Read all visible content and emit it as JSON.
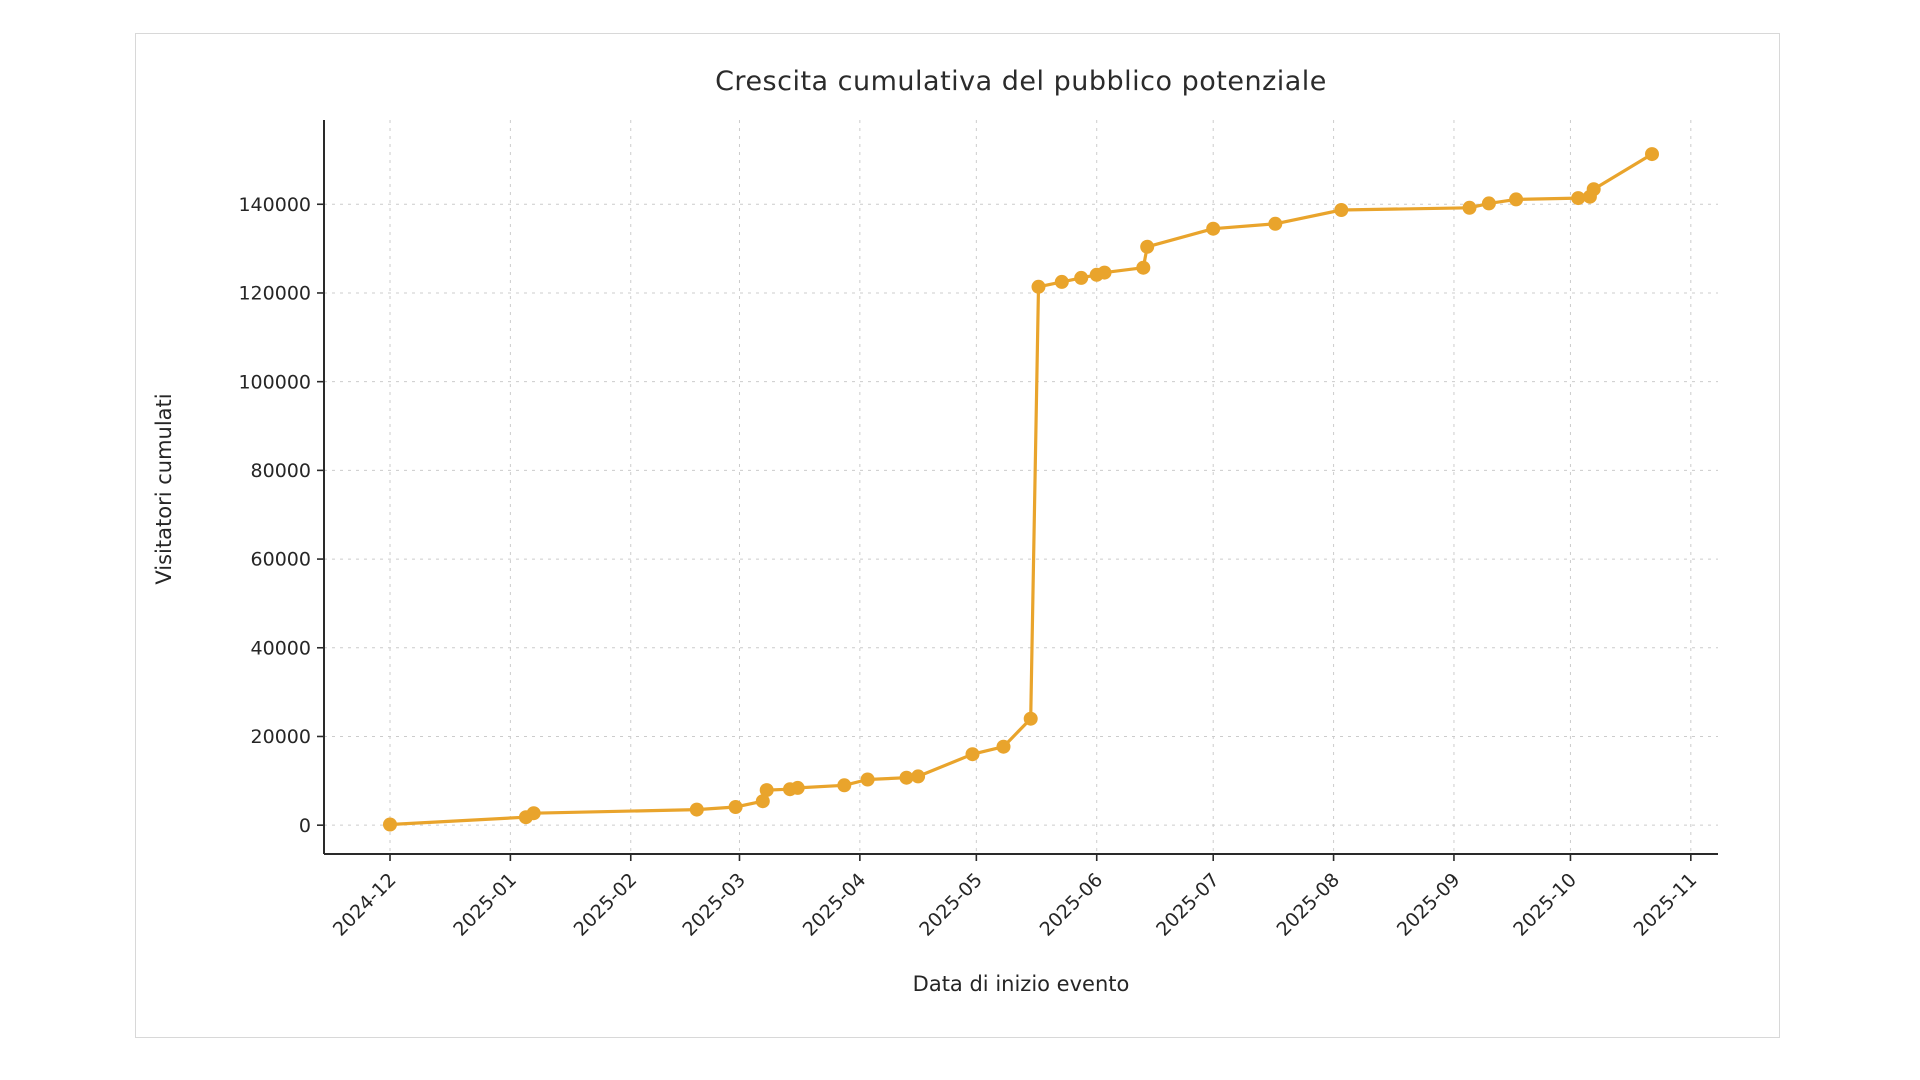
{
  "page": {
    "background": "#ffffff"
  },
  "figure": {
    "background": "#ffffff",
    "border_color": "#d8d8d8"
  },
  "chart_data": {
    "type": "line",
    "title": "Crescita cumulativa del pubblico potenziale",
    "xlabel": "Data di inizio evento",
    "ylabel": "Visitatori cumulati",
    "legend": "none",
    "grid": true,
    "xlim": [
      "2024-11-14",
      "2025-11-08"
    ],
    "ylim": [
      -6500,
      159000
    ],
    "yticks": [
      0,
      20000,
      40000,
      60000,
      80000,
      100000,
      120000,
      140000
    ],
    "xticks": [
      {
        "date": "2024-12-01",
        "label": "2024-12"
      },
      {
        "date": "2025-01-01",
        "label": "2025-01"
      },
      {
        "date": "2025-02-01",
        "label": "2025-02"
      },
      {
        "date": "2025-03-01",
        "label": "2025-03"
      },
      {
        "date": "2025-04-01",
        "label": "2025-04"
      },
      {
        "date": "2025-05-01",
        "label": "2025-05"
      },
      {
        "date": "2025-06-01",
        "label": "2025-06"
      },
      {
        "date": "2025-07-01",
        "label": "2025-07"
      },
      {
        "date": "2025-08-01",
        "label": "2025-08"
      },
      {
        "date": "2025-09-01",
        "label": "2025-09"
      },
      {
        "date": "2025-10-01",
        "label": "2025-10"
      },
      {
        "date": "2025-11-01",
        "label": "2025-11"
      }
    ],
    "series": [
      {
        "name": "Visitatori cumulati",
        "color": "#E9A42C",
        "marker": "circle",
        "points": [
          [
            "2024-12-01",
            150
          ],
          [
            "2025-01-05",
            1800
          ],
          [
            "2025-01-07",
            2700
          ],
          [
            "2025-02-18",
            3500
          ],
          [
            "2025-02-28",
            4100
          ],
          [
            "2025-03-07",
            5400
          ],
          [
            "2025-03-08",
            7900
          ],
          [
            "2025-03-14",
            8100
          ],
          [
            "2025-03-16",
            8400
          ],
          [
            "2025-03-28",
            9000
          ],
          [
            "2025-04-03",
            10300
          ],
          [
            "2025-04-13",
            10700
          ],
          [
            "2025-04-16",
            11000
          ],
          [
            "2025-04-30",
            16000
          ],
          [
            "2025-05-08",
            17700
          ],
          [
            "2025-05-15",
            24000
          ],
          [
            "2025-05-17",
            121400
          ],
          [
            "2025-05-23",
            122500
          ],
          [
            "2025-05-28",
            123400
          ],
          [
            "2025-06-01",
            124100
          ],
          [
            "2025-06-03",
            124600
          ],
          [
            "2025-06-13",
            125700
          ],
          [
            "2025-06-14",
            130400
          ],
          [
            "2025-07-01",
            134500
          ],
          [
            "2025-07-17",
            135600
          ],
          [
            "2025-08-03",
            138700
          ],
          [
            "2025-09-05",
            139200
          ],
          [
            "2025-09-10",
            140200
          ],
          [
            "2025-09-17",
            141100
          ],
          [
            "2025-10-03",
            141400
          ],
          [
            "2025-10-06",
            141700
          ],
          [
            "2025-10-07",
            143400
          ],
          [
            "2025-10-22",
            151300
          ]
        ]
      }
    ],
    "style": {
      "grid_color": "#cccccc",
      "grid_dash": "3 5",
      "spine_color": "#2a2a2a",
      "tick_color": "#2a2a2a",
      "text_color": "#262626",
      "tick_font_size": 19,
      "line_width": 3.2,
      "marker_radius": 7
    }
  }
}
